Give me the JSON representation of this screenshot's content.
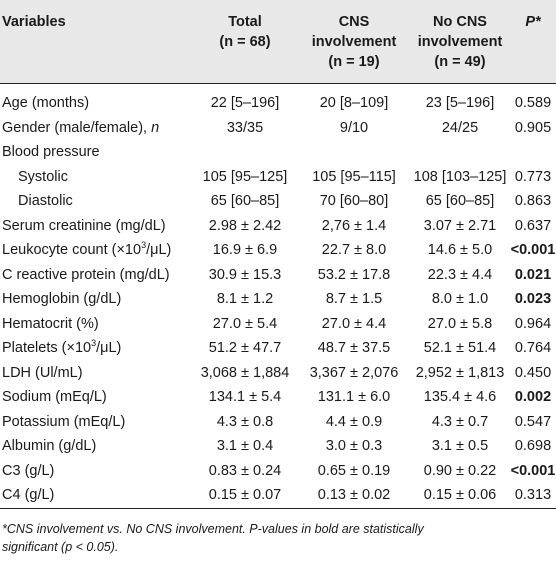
{
  "header": {
    "variables": "Variables",
    "total_l1": "Total",
    "total_l2": "(n = 68)",
    "cns_l1": "CNS",
    "cns_l2": "involvement",
    "cns_l3": "(n = 19)",
    "no_l1": "No CNS",
    "no_l2": "involvement",
    "no_l3": "(n = 49)",
    "p": "P*"
  },
  "rows": [
    {
      "var": "Age (months)",
      "total": "22 [5–196]",
      "cns": "20 [8–109]",
      "no": "23 [5–196]",
      "p": "0.589"
    },
    {
      "var": "Gender (male/female), ",
      "var_italic": "n",
      "total": "33/35",
      "cns": "9/10",
      "no": "24/25",
      "p": "0.905"
    },
    {
      "var": "Blood pressure",
      "total": "",
      "cns": "",
      "no": "",
      "p": ""
    },
    {
      "var": "Systolic",
      "total": "105 [95–125]",
      "cns": "105 [95–115]",
      "no": "108 [103–125]",
      "p": "0.773"
    },
    {
      "var": "Diastolic",
      "total": "65 [60–85]",
      "cns": "70 [60–80]",
      "no": "65 [60–85]",
      "p": "0.863"
    },
    {
      "var": "Serum creatinine (mg/dL)",
      "total": "2.98 ± 2.42",
      "cns": "2,76 ± 1.4",
      "no": "3.07 ± 2.71",
      "p": "0.637"
    },
    {
      "var_pre": "Leukocyte count (×10",
      "var_sup": "3",
      "var_post": "/μL)",
      "total": "16.9 ± 6.9",
      "cns": "22.7 ± 8.0",
      "no": "14.6 ± 5.0",
      "p": "<0.001"
    },
    {
      "var": "C reactive protein (mg/dL)",
      "total": "30.9 ± 15.3",
      "cns": "53.2 ± 17.8",
      "no": "22.3 ± 4.4",
      "p": "0.021"
    },
    {
      "var": "Hemoglobin (g/dL)",
      "total": "8.1 ± 1.2",
      "cns": "8.7 ± 1.5",
      "no": "8.0 ± 1.0",
      "p": "0.023"
    },
    {
      "var": "Hematocrit (%)",
      "total": "27.0 ± 5.4",
      "cns": "27.0 ± 4.4",
      "no": "27.0 ± 5.8",
      "p": "0.964"
    },
    {
      "var_pre": "Platelets (×10",
      "var_sup": "3",
      "var_post": "/μL)",
      "total": "51.2 ± 47.7",
      "cns": "48.7 ± 37.5",
      "no": "52.1 ± 51.4",
      "p": "0.764"
    },
    {
      "var": "LDH (Ul/mL)",
      "total": "3,068 ± 1,884",
      "cns": "3,367 ± 2,076",
      "no": "2,952 ± 1,813",
      "p": "0.450"
    },
    {
      "var": "Sodium (mEq/L)",
      "total": "134.1 ± 5.4",
      "cns": "131.1 ± 6.0",
      "no": "135.4 ± 4.6",
      "p": "0.002"
    },
    {
      "var": "Potassium (mEq/L)",
      "total": "4.3 ± 0.8",
      "cns": "4.4 ± 0.9",
      "no": "4.3 ± 0.7",
      "p": "0.547"
    },
    {
      "var": "Albumin (g/dL)",
      "total": "3.1 ± 0.4",
      "cns": "3.0 ± 0.3",
      "no": "3.1 ± 0.5",
      "p": "0.698"
    },
    {
      "var": "C3 (g/L)",
      "total": "0.83 ± 0.24",
      "cns": "0.65 ± 0.19",
      "no": "0.90 ± 0.22",
      "p": "<0.001"
    },
    {
      "var": "C4 (g/L)",
      "total": "0.15 ± 0.07",
      "cns": "0.13 ± 0.02",
      "no": "0.15 ± 0.06",
      "p": "0.313"
    }
  ],
  "footnote": {
    "line1": "*CNS involvement vs. No CNS involvement. P-values in bold are statistically",
    "line2": "significant (p < 0.05)."
  }
}
